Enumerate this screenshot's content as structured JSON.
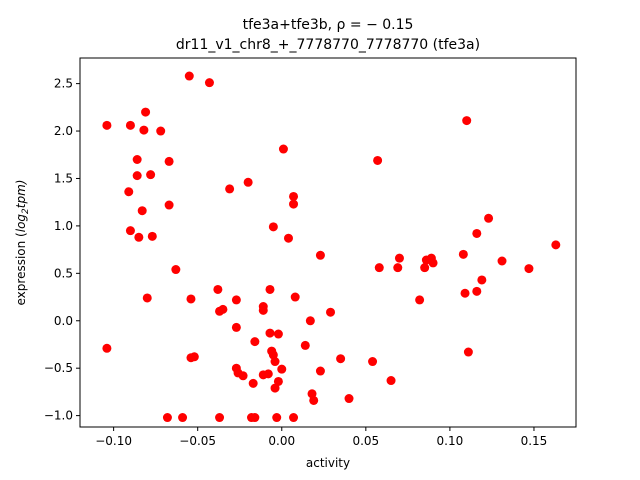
{
  "chart_data": {
    "type": "scatter",
    "title_line1": "tfe3a+tfe3b, ρ = − 0.15",
    "title_line2": "dr11_v1_chr8_+_7778770_7778770 (tfe3a)",
    "xlabel": "activity",
    "ylabel_prefix": "expression (",
    "ylabel_main": "log",
    "ylabel_sub": "2",
    "ylabel_tail": "tpm)",
    "xlim": [
      -0.12,
      0.175
    ],
    "ylim": [
      -1.12,
      2.77
    ],
    "x_ticks": [
      -0.1,
      -0.05,
      0.0,
      0.05,
      0.1,
      0.15
    ],
    "x_tick_labels": [
      "−0.10",
      "−0.05",
      "0.00",
      "0.05",
      "0.10",
      "0.15"
    ],
    "y_ticks": [
      -1.0,
      -0.5,
      0.0,
      0.5,
      1.0,
      1.5,
      2.0,
      2.5
    ],
    "y_tick_labels": [
      "−1.0",
      "−0.5",
      "0.0",
      "0.5",
      "1.0",
      "1.5",
      "2.0",
      "2.5"
    ],
    "grid": false,
    "marker_color": "#ff0000",
    "points": [
      {
        "x": -0.104,
        "y": 2.06
      },
      {
        "x": -0.09,
        "y": 2.06
      },
      {
        "x": -0.081,
        "y": 2.2
      },
      {
        "x": -0.082,
        "y": 2.01
      },
      {
        "x": -0.072,
        "y": 2.0
      },
      {
        "x": -0.055,
        "y": 2.58
      },
      {
        "x": -0.043,
        "y": 2.51
      },
      {
        "x": -0.086,
        "y": 1.7
      },
      {
        "x": -0.086,
        "y": 1.53
      },
      {
        "x": -0.078,
        "y": 1.54
      },
      {
        "x": -0.067,
        "y": 1.68
      },
      {
        "x": -0.091,
        "y": 1.36
      },
      {
        "x": -0.083,
        "y": 1.16
      },
      {
        "x": -0.067,
        "y": 1.22
      },
      {
        "x": -0.031,
        "y": 1.39
      },
      {
        "x": -0.02,
        "y": 1.46
      },
      {
        "x": 0.001,
        "y": 1.81
      },
      {
        "x": -0.09,
        "y": 0.95
      },
      {
        "x": -0.085,
        "y": 0.88
      },
      {
        "x": -0.077,
        "y": 0.89
      },
      {
        "x": -0.005,
        "y": 0.99
      },
      {
        "x": 0.004,
        "y": 0.87
      },
      {
        "x": 0.007,
        "y": 1.31
      },
      {
        "x": 0.007,
        "y": 1.23
      },
      {
        "x": -0.063,
        "y": 0.54
      },
      {
        "x": -0.08,
        "y": 0.24
      },
      {
        "x": -0.054,
        "y": 0.23
      },
      {
        "x": -0.038,
        "y": 0.33
      },
      {
        "x": -0.037,
        "y": 0.1
      },
      {
        "x": -0.035,
        "y": 0.12
      },
      {
        "x": -0.027,
        "y": 0.22
      },
      {
        "x": -0.011,
        "y": 0.15
      },
      {
        "x": -0.011,
        "y": 0.11
      },
      {
        "x": -0.007,
        "y": 0.33
      },
      {
        "x": 0.008,
        "y": 0.25
      },
      {
        "x": -0.027,
        "y": -0.07
      },
      {
        "x": -0.007,
        "y": -0.13
      },
      {
        "x": -0.002,
        "y": -0.14
      },
      {
        "x": 0.017,
        "y": 0.0
      },
      {
        "x": 0.029,
        "y": 0.09
      },
      {
        "x": 0.023,
        "y": 0.69
      },
      {
        "x": -0.104,
        "y": -0.29
      },
      {
        "x": -0.054,
        "y": -0.39
      },
      {
        "x": -0.052,
        "y": -0.38
      },
      {
        "x": -0.016,
        "y": -0.22
      },
      {
        "x": -0.006,
        "y": -0.32
      },
      {
        "x": -0.005,
        "y": -0.36
      },
      {
        "x": -0.004,
        "y": -0.43
      },
      {
        "x": 0.014,
        "y": -0.26
      },
      {
        "x": 0.035,
        "y": -0.4
      },
      {
        "x": 0.054,
        "y": -0.43
      },
      {
        "x": -0.027,
        "y": -0.5
      },
      {
        "x": -0.026,
        "y": -0.55
      },
      {
        "x": -0.023,
        "y": -0.58
      },
      {
        "x": -0.011,
        "y": -0.57
      },
      {
        "x": -0.008,
        "y": -0.56
      },
      {
        "x": 0.0,
        "y": -0.51
      },
      {
        "x": 0.023,
        "y": -0.53
      },
      {
        "x": -0.017,
        "y": -0.66
      },
      {
        "x": -0.002,
        "y": -0.64
      },
      {
        "x": -0.004,
        "y": -0.71
      },
      {
        "x": 0.018,
        "y": -0.77
      },
      {
        "x": 0.019,
        "y": -0.84
      },
      {
        "x": 0.04,
        "y": -0.82
      },
      {
        "x": 0.065,
        "y": -0.63
      },
      {
        "x": -0.068,
        "y": -1.02
      },
      {
        "x": -0.059,
        "y": -1.02
      },
      {
        "x": -0.037,
        "y": -1.02
      },
      {
        "x": -0.018,
        "y": -1.02
      },
      {
        "x": -0.016,
        "y": -1.02
      },
      {
        "x": -0.003,
        "y": -1.02
      },
      {
        "x": 0.007,
        "y": -1.02
      },
      {
        "x": 0.057,
        "y": 1.69
      },
      {
        "x": 0.058,
        "y": 0.56
      },
      {
        "x": 0.069,
        "y": 0.56
      },
      {
        "x": 0.07,
        "y": 0.66
      },
      {
        "x": 0.082,
        "y": 0.22
      },
      {
        "x": 0.085,
        "y": 0.56
      },
      {
        "x": 0.086,
        "y": 0.64
      },
      {
        "x": 0.089,
        "y": 0.66
      },
      {
        "x": 0.09,
        "y": 0.61
      },
      {
        "x": 0.108,
        "y": 0.7
      },
      {
        "x": 0.109,
        "y": 0.29
      },
      {
        "x": 0.11,
        "y": 2.11
      },
      {
        "x": 0.111,
        "y": -0.33
      },
      {
        "x": 0.116,
        "y": 0.31
      },
      {
        "x": 0.116,
        "y": 0.92
      },
      {
        "x": 0.119,
        "y": 0.43
      },
      {
        "x": 0.123,
        "y": 1.08
      },
      {
        "x": 0.131,
        "y": 0.63
      },
      {
        "x": 0.147,
        "y": 0.55
      },
      {
        "x": 0.163,
        "y": 0.8
      }
    ]
  }
}
